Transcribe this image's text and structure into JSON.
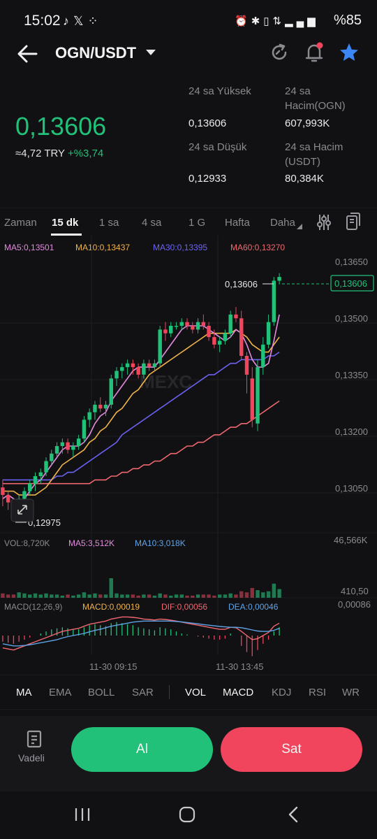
{
  "status_bar": {
    "time": "15:02",
    "left_icons": [
      "tiktok-icon",
      "x-icon",
      "grid-icon"
    ],
    "right_icons": [
      "alarm-icon",
      "bluetooth-icon",
      "volte-icon",
      "4g-icon",
      "signal-icon"
    ],
    "battery": "%85"
  },
  "header": {
    "pair": "OGN/USDT",
    "icons": [
      "back-arrow-icon",
      "refresh-icon",
      "bell-icon",
      "star-icon"
    ]
  },
  "price": {
    "last": "0,13606",
    "try_value": "≈4,72 TRY",
    "change": "+%3,74",
    "up_color": "#22c17a",
    "down_color": "#f0455d"
  },
  "stats": {
    "high_label": "24 sa Yüksek",
    "high_value": "0,13606",
    "vol_ogn_label_1": "24 sa",
    "vol_ogn_label_2": "Hacim(OGN)",
    "vol_ogn_value": "607,993K",
    "low_label": "24 sa Düşük",
    "low_value": "0,12933",
    "vol_usdt_label_1": "24 sa Hacim",
    "vol_usdt_label_2": "(USDT)",
    "vol_usdt_value": "80,384K"
  },
  "timeframes": {
    "items": [
      "Zaman",
      "15 dk",
      "1 sa",
      "4 sa",
      "1 G",
      "Hafta",
      "Daha"
    ],
    "active": "15 dk"
  },
  "ma_legend": {
    "ma5": "MA5:0,13501",
    "ma10": "MA10:0,13437",
    "ma30": "MA30:0,13395",
    "ma60": "MA60:0,13270"
  },
  "chart": {
    "y_ticks": [
      "0,13650",
      "0,13500",
      "0,13350",
      "0,13200",
      "0,13050"
    ],
    "last_price_tag": "0,13606",
    "max_label": "0,13606",
    "min_label": "0,12975",
    "watermark": "MEXC",
    "x_labels": [
      "11-30 09:15",
      "11-30 13:45"
    ],
    "vol_legend": {
      "vol": "VOL:8,720K",
      "ma5": "MA5:3,512K",
      "ma10": "MA10:3,018K",
      "max": "46,566K",
      "min": "410,50"
    },
    "macd_legend": {
      "name": "MACD(12,26,9)",
      "macd": "MACD:0,00019",
      "dif": "DIF:0,00056",
      "dea": "DEA:0,00046",
      "max": "0,00086"
    },
    "colors": {
      "ma5": "#e48be0",
      "ma10": "#f0b34a",
      "ma30": "#6b63f5",
      "ma60": "#f06870",
      "vol_ma10": "#5fa4e6",
      "grid": "#1e1e23"
    }
  },
  "chart_data": {
    "type": "candlestick",
    "title": "",
    "ylim": [
      0.1291,
      0.1371
    ],
    "candles": [
      [
        0.1304,
        0.1306,
        0.1299,
        0.1302
      ],
      [
        0.1302,
        0.1303,
        0.1298,
        0.13
      ],
      [
        0.13,
        0.1301,
        0.1296,
        0.1298
      ],
      [
        0.1298,
        0.1302,
        0.1297,
        0.1301
      ],
      [
        0.1301,
        0.1304,
        0.13,
        0.1303
      ],
      [
        0.1303,
        0.1306,
        0.1302,
        0.1305
      ],
      [
        0.1305,
        0.1308,
        0.1303,
        0.1307
      ],
      [
        0.1307,
        0.1309,
        0.1305,
        0.1308
      ],
      [
        0.1308,
        0.1312,
        0.1307,
        0.1311
      ],
      [
        0.1311,
        0.1314,
        0.131,
        0.1313
      ],
      [
        0.1313,
        0.1316,
        0.1312,
        0.1315
      ],
      [
        0.1315,
        0.1317,
        0.1313,
        0.1316
      ],
      [
        0.1316,
        0.1317,
        0.1313,
        0.1314
      ],
      [
        0.1314,
        0.1316,
        0.1312,
        0.1315
      ],
      [
        0.1315,
        0.1318,
        0.1314,
        0.1317
      ],
      [
        0.1317,
        0.1323,
        0.1316,
        0.1322
      ],
      [
        0.1322,
        0.1325,
        0.132,
        0.1324
      ],
      [
        0.1324,
        0.1327,
        0.1322,
        0.1326
      ],
      [
        0.1326,
        0.1328,
        0.1324,
        0.1325
      ],
      [
        0.1325,
        0.1327,
        0.1323,
        0.1326
      ],
      [
        0.1326,
        0.1334,
        0.1325,
        0.1333
      ],
      [
        0.1333,
        0.1336,
        0.1331,
        0.1335
      ],
      [
        0.1335,
        0.1337,
        0.1333,
        0.1336
      ],
      [
        0.1336,
        0.1338,
        0.1334,
        0.1337
      ],
      [
        0.1337,
        0.1338,
        0.1334,
        0.1336
      ],
      [
        0.1336,
        0.1337,
        0.1333,
        0.1334
      ],
      [
        0.1334,
        0.1338,
        0.1333,
        0.1337
      ],
      [
        0.1337,
        0.1338,
        0.1335,
        0.1336
      ],
      [
        0.1336,
        0.1338,
        0.1335,
        0.1337
      ],
      [
        0.1337,
        0.1347,
        0.1336,
        0.1346
      ],
      [
        0.1346,
        0.1348,
        0.1343,
        0.1345
      ],
      [
        0.1345,
        0.1348,
        0.1344,
        0.1347
      ],
      [
        0.1347,
        0.1348,
        0.1346,
        0.1347
      ],
      [
        0.1347,
        0.1349,
        0.1346,
        0.1348
      ],
      [
        0.1348,
        0.1349,
        0.1346,
        0.1347
      ],
      [
        0.1347,
        0.1348,
        0.1345,
        0.1346
      ],
      [
        0.1346,
        0.1349,
        0.1345,
        0.1348
      ],
      [
        0.1348,
        0.135,
        0.1346,
        0.1347
      ],
      [
        0.1347,
        0.1348,
        0.1343,
        0.1344
      ],
      [
        0.1344,
        0.1346,
        0.1341,
        0.1342
      ],
      [
        0.1342,
        0.1344,
        0.134,
        0.1343
      ],
      [
        0.1343,
        0.1346,
        0.1342,
        0.1345
      ],
      [
        0.1345,
        0.1351,
        0.1344,
        0.135
      ],
      [
        0.135,
        0.1352,
        0.1348,
        0.1349
      ],
      [
        0.1349,
        0.1351,
        0.1338,
        0.1339
      ],
      [
        0.1339,
        0.134,
        0.1329,
        0.1334
      ],
      [
        0.1333,
        0.1336,
        0.132,
        0.1322
      ],
      [
        0.1321,
        0.1338,
        0.1319,
        0.1336
      ],
      [
        0.1336,
        0.1344,
        0.1334,
        0.1342
      ],
      [
        0.1342,
        0.135,
        0.1341,
        0.1348
      ],
      [
        0.1348,
        0.136,
        0.1347,
        0.1359
      ],
      [
        0.1359,
        0.1361,
        0.1358,
        0.136
      ]
    ],
    "ma5": [
      0.1301,
      0.1302,
      0.1301,
      0.13,
      0.1301,
      0.1303,
      0.1305,
      0.1306,
      0.1308,
      0.131,
      0.1312,
      0.1314,
      0.1315,
      0.1315,
      0.1315,
      0.1316,
      0.1318,
      0.1321,
      0.1323,
      0.1324,
      0.1327,
      0.1329,
      0.1331,
      0.1333,
      0.1335,
      0.1336,
      0.1336,
      0.1336,
      0.1336,
      0.1338,
      0.134,
      0.1342,
      0.1344,
      0.1346,
      0.1347,
      0.1347,
      0.1347,
      0.1347,
      0.1346,
      0.1345,
      0.1344,
      0.1343,
      0.1344,
      0.1346,
      0.1345,
      0.1342,
      0.1338,
      0.1336,
      0.1336,
      0.1337,
      0.1343,
      0.135
    ],
    "ma10": [
      0.1303,
      0.1303,
      0.1303,
      0.1302,
      0.1302,
      0.1302,
      0.1302,
      0.1303,
      0.1304,
      0.1306,
      0.1308,
      0.131,
      0.1311,
      0.1312,
      0.1313,
      0.1314,
      0.1316,
      0.1317,
      0.1319,
      0.132,
      0.1322,
      0.1324,
      0.1325,
      0.1327,
      0.1329,
      0.133,
      0.1332,
      0.1334,
      0.1335,
      0.1336,
      0.1337,
      0.1338,
      0.1339,
      0.134,
      0.1341,
      0.1342,
      0.1343,
      0.1344,
      0.1345,
      0.1345,
      0.1345,
      0.1345,
      0.1345,
      0.1346,
      0.1345,
      0.1344,
      0.1342,
      0.1341,
      0.134,
      0.134,
      0.1342,
      0.1344
    ],
    "ma30": [
      0.1306,
      0.1306,
      0.1306,
      0.1306,
      0.1306,
      0.1306,
      0.1306,
      0.1306,
      0.1306,
      0.1306,
      0.1307,
      0.1307,
      0.1308,
      0.1308,
      0.1309,
      0.131,
      0.1311,
      0.1312,
      0.1313,
      0.1314,
      0.1315,
      0.1316,
      0.1318,
      0.1319,
      0.132,
      0.1321,
      0.1322,
      0.1323,
      0.1324,
      0.1325,
      0.1326,
      0.1327,
      0.1328,
      0.1329,
      0.133,
      0.1331,
      0.1332,
      0.1333,
      0.1334,
      0.1334,
      0.1335,
      0.1336,
      0.1337,
      0.1337,
      0.1338,
      0.1338,
      0.1338,
      0.1338,
      0.1338,
      0.1339,
      0.1339,
      0.134
    ],
    "ma60": [
      0.1305,
      0.1305,
      0.1305,
      0.1305,
      0.1305,
      0.1305,
      0.1305,
      0.1305,
      0.1305,
      0.1305,
      0.1305,
      0.1305,
      0.1305,
      0.1305,
      0.1305,
      0.1305,
      0.1305,
      0.1306,
      0.1306,
      0.1306,
      0.1307,
      0.1307,
      0.1308,
      0.1308,
      0.1309,
      0.1309,
      0.131,
      0.131,
      0.1311,
      0.1311,
      0.1312,
      0.1313,
      0.1313,
      0.1314,
      0.1315,
      0.1315,
      0.1316,
      0.1316,
      0.1317,
      0.1318,
      0.1318,
      0.1319,
      0.132,
      0.132,
      0.1321,
      0.1321,
      0.1322,
      0.1323,
      0.1324,
      0.1325,
      0.1326,
      0.1327
    ],
    "volume": [
      0.4,
      0.3,
      0.3,
      0.5,
      0.4,
      0.3,
      0.4,
      0.3,
      0.4,
      0.3,
      0.3,
      0.2,
      0.3,
      0.2,
      0.3,
      0.5,
      0.3,
      0.4,
      0.3,
      0.3,
      1.8,
      0.4,
      0.3,
      0.3,
      0.3,
      0.2,
      0.3,
      0.3,
      0.2,
      0.4,
      0.3,
      0.2,
      0.3,
      0.3,
      0.2,
      0.2,
      0.3,
      0.3,
      0.3,
      0.2,
      0.3,
      0.3,
      0.4,
      0.3,
      0.6,
      0.5,
      0.9,
      0.7,
      0.5,
      0.6,
      1.3,
      0.8
    ],
    "volume_ylim": [
      0,
      4.5
    ],
    "macd_hist": [
      -0.3,
      -0.35,
      -0.4,
      -0.3,
      -0.2,
      -0.1,
      0.0,
      0.1,
      0.2,
      0.3,
      0.35,
      0.4,
      0.35,
      0.3,
      0.3,
      0.4,
      0.5,
      0.55,
      0.5,
      0.45,
      0.6,
      0.65,
      0.6,
      0.55,
      0.5,
      0.4,
      0.35,
      0.3,
      0.25,
      0.4,
      0.35,
      0.3,
      0.2,
      0.1,
      0.05,
      0.0,
      -0.05,
      -0.1,
      -0.15,
      -0.2,
      -0.2,
      -0.15,
      0.1,
      0.0,
      -0.5,
      -0.8,
      -1.0,
      -0.7,
      -0.4,
      -0.2,
      0.2,
      0.4
    ],
    "macd_dif": [
      -0.6,
      -0.65,
      -0.7,
      -0.6,
      -0.5,
      -0.4,
      -0.3,
      -0.2,
      -0.1,
      0.0,
      0.1,
      0.2,
      0.25,
      0.3,
      0.35,
      0.45,
      0.55,
      0.6,
      0.65,
      0.7,
      0.8,
      0.85,
      0.9,
      0.9,
      0.88,
      0.85,
      0.8,
      0.78,
      0.75,
      0.8,
      0.78,
      0.74,
      0.7,
      0.65,
      0.6,
      0.55,
      0.5,
      0.45,
      0.4,
      0.35,
      0.3,
      0.3,
      0.4,
      0.38,
      0.2,
      0.0,
      -0.2,
      -0.15,
      0.0,
      0.15,
      0.45,
      0.6
    ],
    "macd_dea": [
      -0.4,
      -0.45,
      -0.5,
      -0.5,
      -0.48,
      -0.45,
      -0.4,
      -0.35,
      -0.3,
      -0.25,
      -0.2,
      -0.12,
      -0.05,
      0.0,
      0.05,
      0.1,
      0.18,
      0.25,
      0.3,
      0.38,
      0.45,
      0.5,
      0.55,
      0.6,
      0.65,
      0.68,
      0.7,
      0.7,
      0.7,
      0.7,
      0.7,
      0.7,
      0.68,
      0.66,
      0.63,
      0.6,
      0.57,
      0.53,
      0.5,
      0.47,
      0.44,
      0.42,
      0.4,
      0.4,
      0.38,
      0.33,
      0.27,
      0.22,
      0.2,
      0.2,
      0.25,
      0.35
    ]
  },
  "indicators": {
    "main": [
      "MA",
      "EMA",
      "BOLL",
      "SAR"
    ],
    "sub": [
      "VOL",
      "MACD",
      "KDJ",
      "RSI",
      "WR"
    ]
  },
  "trade": {
    "futures_label": "Vadeli",
    "buy_label": "Al",
    "sell_label": "Sat"
  }
}
